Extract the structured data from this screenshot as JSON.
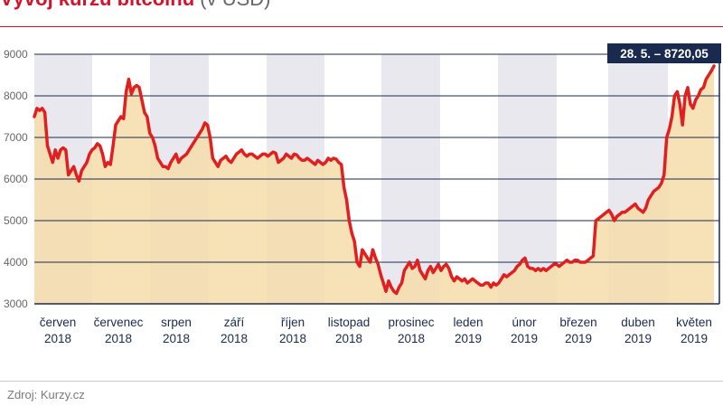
{
  "title": {
    "main": "Vývoj kurzu bitcoinu",
    "unit": "(v USD)"
  },
  "source": "Zdroj: Kurzy.cz",
  "colors": {
    "accent": "#d3122b",
    "line": "#e02020",
    "area": "#f6dcaa",
    "band": "#e8e8ee",
    "gridline": "#1a2a4e",
    "callout_bg": "#1a2a4e"
  },
  "chart_data": {
    "type": "area",
    "title": "Vývoj kurzu bitcoinu (v USD)",
    "xlabel": "",
    "ylabel": "",
    "ylim": [
      3000,
      9000
    ],
    "yticks": [
      "3000",
      "4000",
      "5000",
      "6000",
      "7000",
      "8000",
      "9000"
    ],
    "grid": true,
    "month_labels": [
      {
        "month": "červen",
        "year": "2018"
      },
      {
        "month": "červenec",
        "year": "2018"
      },
      {
        "month": "srpen",
        "year": "2018"
      },
      {
        "month": "září",
        "year": "2018"
      },
      {
        "month": "říjen",
        "year": "2018"
      },
      {
        "month": "listopad",
        "year": "2018"
      },
      {
        "month": "prosinec",
        "year": "2018"
      },
      {
        "month": "leden",
        "year": "2019"
      },
      {
        "month": "únor",
        "year": "2019"
      },
      {
        "month": "březen",
        "year": "2019"
      },
      {
        "month": "duben",
        "year": "2019"
      },
      {
        "month": "květen",
        "year": "2019"
      }
    ],
    "annotation": {
      "text": "28. 5. – 8720,05",
      "value": 8720.05
    },
    "series": [
      {
        "values": [
          7500,
          7700,
          7650,
          7700,
          7600,
          6800,
          6600,
          6400,
          6700,
          6500,
          6700,
          6750,
          6700,
          6100,
          6200,
          6300,
          6100,
          5950,
          6200,
          6300,
          6400,
          6600,
          6700,
          6750,
          6850,
          6800,
          6600,
          6300,
          6400,
          6350,
          6800,
          7300,
          7400,
          7500,
          7450,
          8100,
          8400,
          8050,
          8200,
          8250,
          8200,
          7900,
          7600,
          7500,
          7100,
          7000,
          6800,
          6500,
          6400,
          6300,
          6300,
          6250,
          6400,
          6500,
          6600,
          6400,
          6500,
          6550,
          6600,
          6700,
          6800,
          6900,
          7000,
          7100,
          7200,
          7350,
          7300,
          7000,
          6500,
          6400,
          6300,
          6450,
          6500,
          6550,
          6450,
          6400,
          6500,
          6600,
          6650,
          6700,
          6600,
          6550,
          6600,
          6600,
          6550,
          6500,
          6550,
          6600,
          6600,
          6550,
          6600,
          6650,
          6620,
          6400,
          6450,
          6500,
          6600,
          6550,
          6500,
          6600,
          6580,
          6500,
          6450,
          6450,
          6500,
          6450,
          6400,
          6350,
          6450,
          6400,
          6350,
          6400,
          6500,
          6450,
          6500,
          6480,
          6400,
          6350,
          5800,
          5500,
          5000,
          4700,
          4500,
          4000,
          3900,
          4300,
          4200,
          4100,
          4000,
          4300,
          4100,
          3950,
          3700,
          3500,
          3300,
          3550,
          3400,
          3300,
          3250,
          3400,
          3500,
          3800,
          3900,
          4000,
          3850,
          3900,
          4050,
          3800,
          3700,
          3600,
          3800,
          3900,
          3750,
          3850,
          3950,
          3800,
          3900,
          3950,
          3850,
          3650,
          3550,
          3650,
          3600,
          3550,
          3600,
          3500,
          3550,
          3600,
          3550,
          3500,
          3450,
          3450,
          3500,
          3500,
          3400,
          3500,
          3450,
          3500,
          3600,
          3700,
          3650,
          3700,
          3750,
          3800,
          3900,
          3950,
          4050,
          4100,
          3900,
          3850,
          3850,
          3800,
          3850,
          3800,
          3850,
          3800,
          3850,
          3900,
          3950,
          3950,
          3900,
          3950,
          4000,
          4050,
          4000,
          4000,
          4050,
          4050,
          4000,
          4000,
          4000,
          4050,
          4100,
          4150,
          5000,
          5050,
          5100,
          5150,
          5200,
          5250,
          5150,
          5000,
          5100,
          5150,
          5200,
          5200,
          5250,
          5300,
          5350,
          5400,
          5300,
          5250,
          5200,
          5300,
          5500,
          5600,
          5700,
          5750,
          5800,
          5900,
          6100,
          7000,
          7200,
          7500,
          8000,
          8100,
          7800,
          7300,
          8000,
          8200,
          7800,
          7700,
          7900,
          8000,
          8150,
          8200,
          8400,
          8500,
          8600,
          8720
        ]
      }
    ]
  }
}
